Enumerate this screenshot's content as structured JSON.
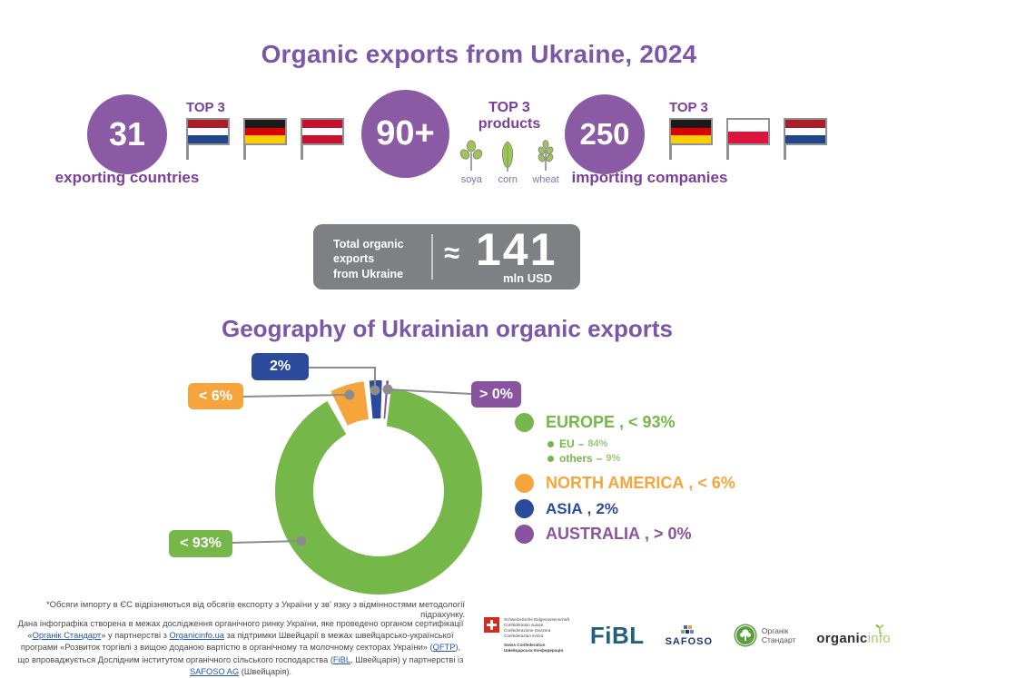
{
  "page": {
    "title": "Organic exports from Ukraine, 2024",
    "section_title": "Geography of Ukrainian organic exports"
  },
  "accent_colors": {
    "title_purple": "#7d57a7",
    "circle_purple": "#8a5aa5",
    "caption_purple": "#7a4099",
    "total_box_gray": "#7f8084",
    "connector_gray": "#8c8c8c"
  },
  "stats": [
    {
      "value": "31",
      "caption": "exporting countries",
      "top_label": "TOP 3",
      "flags": [
        {
          "name": "netherlands",
          "stripes": [
            "#ae1c28",
            "#ffffff",
            "#21468b"
          ]
        },
        {
          "name": "germany",
          "stripes": [
            "#1a1a1a",
            "#dd0000",
            "#ffce00"
          ]
        },
        {
          "name": "austria",
          "stripes": [
            "#c8102e",
            "#ffffff",
            "#c8102e"
          ]
        }
      ]
    },
    {
      "value": "90+",
      "top_label": "TOP 3",
      "top_label_line2": "products",
      "products": [
        "soya",
        "corn",
        "wheat"
      ]
    },
    {
      "value": "250",
      "caption": "importing companies",
      "top_label": "TOP 3",
      "flags": [
        {
          "name": "germany",
          "stripes": [
            "#1a1a1a",
            "#dd0000",
            "#ffce00"
          ]
        },
        {
          "name": "poland",
          "stripes": [
            "#ffffff",
            "#dc143c"
          ]
        },
        {
          "name": "netherlands",
          "stripes": [
            "#ae1c28",
            "#ffffff",
            "#21468b"
          ]
        }
      ]
    }
  ],
  "total_box": {
    "label_line1": "Total organic",
    "label_line2": "exports",
    "label_line3": "from Ukraine",
    "approx_sign": "≈",
    "value": "141",
    "unit": "mln USD"
  },
  "chart_data": {
    "type": "pie",
    "subtype": "donut",
    "title": "Geography of Ukrainian organic exports",
    "units": "percent of organic export value",
    "legend_position": "right",
    "legend_sep": ",",
    "segments": [
      {
        "name": "EUROPE",
        "callout": "< 93%",
        "value": 92.5,
        "color": "#76b74a"
      },
      {
        "name": "NORTH AMERICA",
        "callout": "< 6%",
        "value": 5.5,
        "color": "#f5a53c"
      },
      {
        "name": "ASIA",
        "callout": "2%",
        "value": 2,
        "color": "#2b4a9b"
      },
      {
        "name": "AUSTRALIA",
        "callout": "> 0%",
        "value": 0.3,
        "color": "#8a539f"
      }
    ],
    "europe_breakdown": [
      {
        "name": "EU",
        "sep": "–",
        "value_label": "84%"
      },
      {
        "name": "others",
        "sep": "–",
        "value_label": "9%"
      }
    ]
  },
  "footnote": "*Обсяги імпорту в ЄС відрізняються від обсягів експорту з України у зв' язку з відмінностями методології підрахунку.",
  "credits": [
    {
      "t": "Дана інфографіка створена в межах дослідження органічного ринку України, яке проведено органом сертифікації «"
    },
    {
      "t": "Органік Стандарт",
      "link": true
    },
    {
      "t": "» у партнерстві з "
    },
    {
      "t": "Organicinfo.ua",
      "link": true
    },
    {
      "t": " за підтримки Швейцарії в межах швейцарсько-української програми «Розвиток торгівлі з вищою доданою вартістю в органічному та молочному секторах України» ("
    },
    {
      "t": "QFTP",
      "link": true
    },
    {
      "t": "), що впроваджується Дослідним інститутом органічного сільського господарства ("
    },
    {
      "t": "FiBL",
      "link": true
    },
    {
      "t": ", Швейцарія) у партнерстві із "
    },
    {
      "t": "SAFOSO AG",
      "link": true
    },
    {
      "t": " (Швейцарія)."
    }
  ],
  "logos": {
    "swiss": {
      "lines": [
        "Schweizerische Eidgenossenschaft",
        "Confédération suisse",
        "Confederazione Svizzera",
        "Confederaziun svizra"
      ],
      "bold_lines": [
        "Swiss Confederation",
        "Швейцарська Конфедерація"
      ]
    },
    "fibl": "FiBL",
    "safoso": "SAFOSO",
    "organic_standard": {
      "line1": "Органік",
      "line2": "Стандарт"
    },
    "organicinfo": {
      "part1": "organic",
      "part2": "info"
    }
  }
}
